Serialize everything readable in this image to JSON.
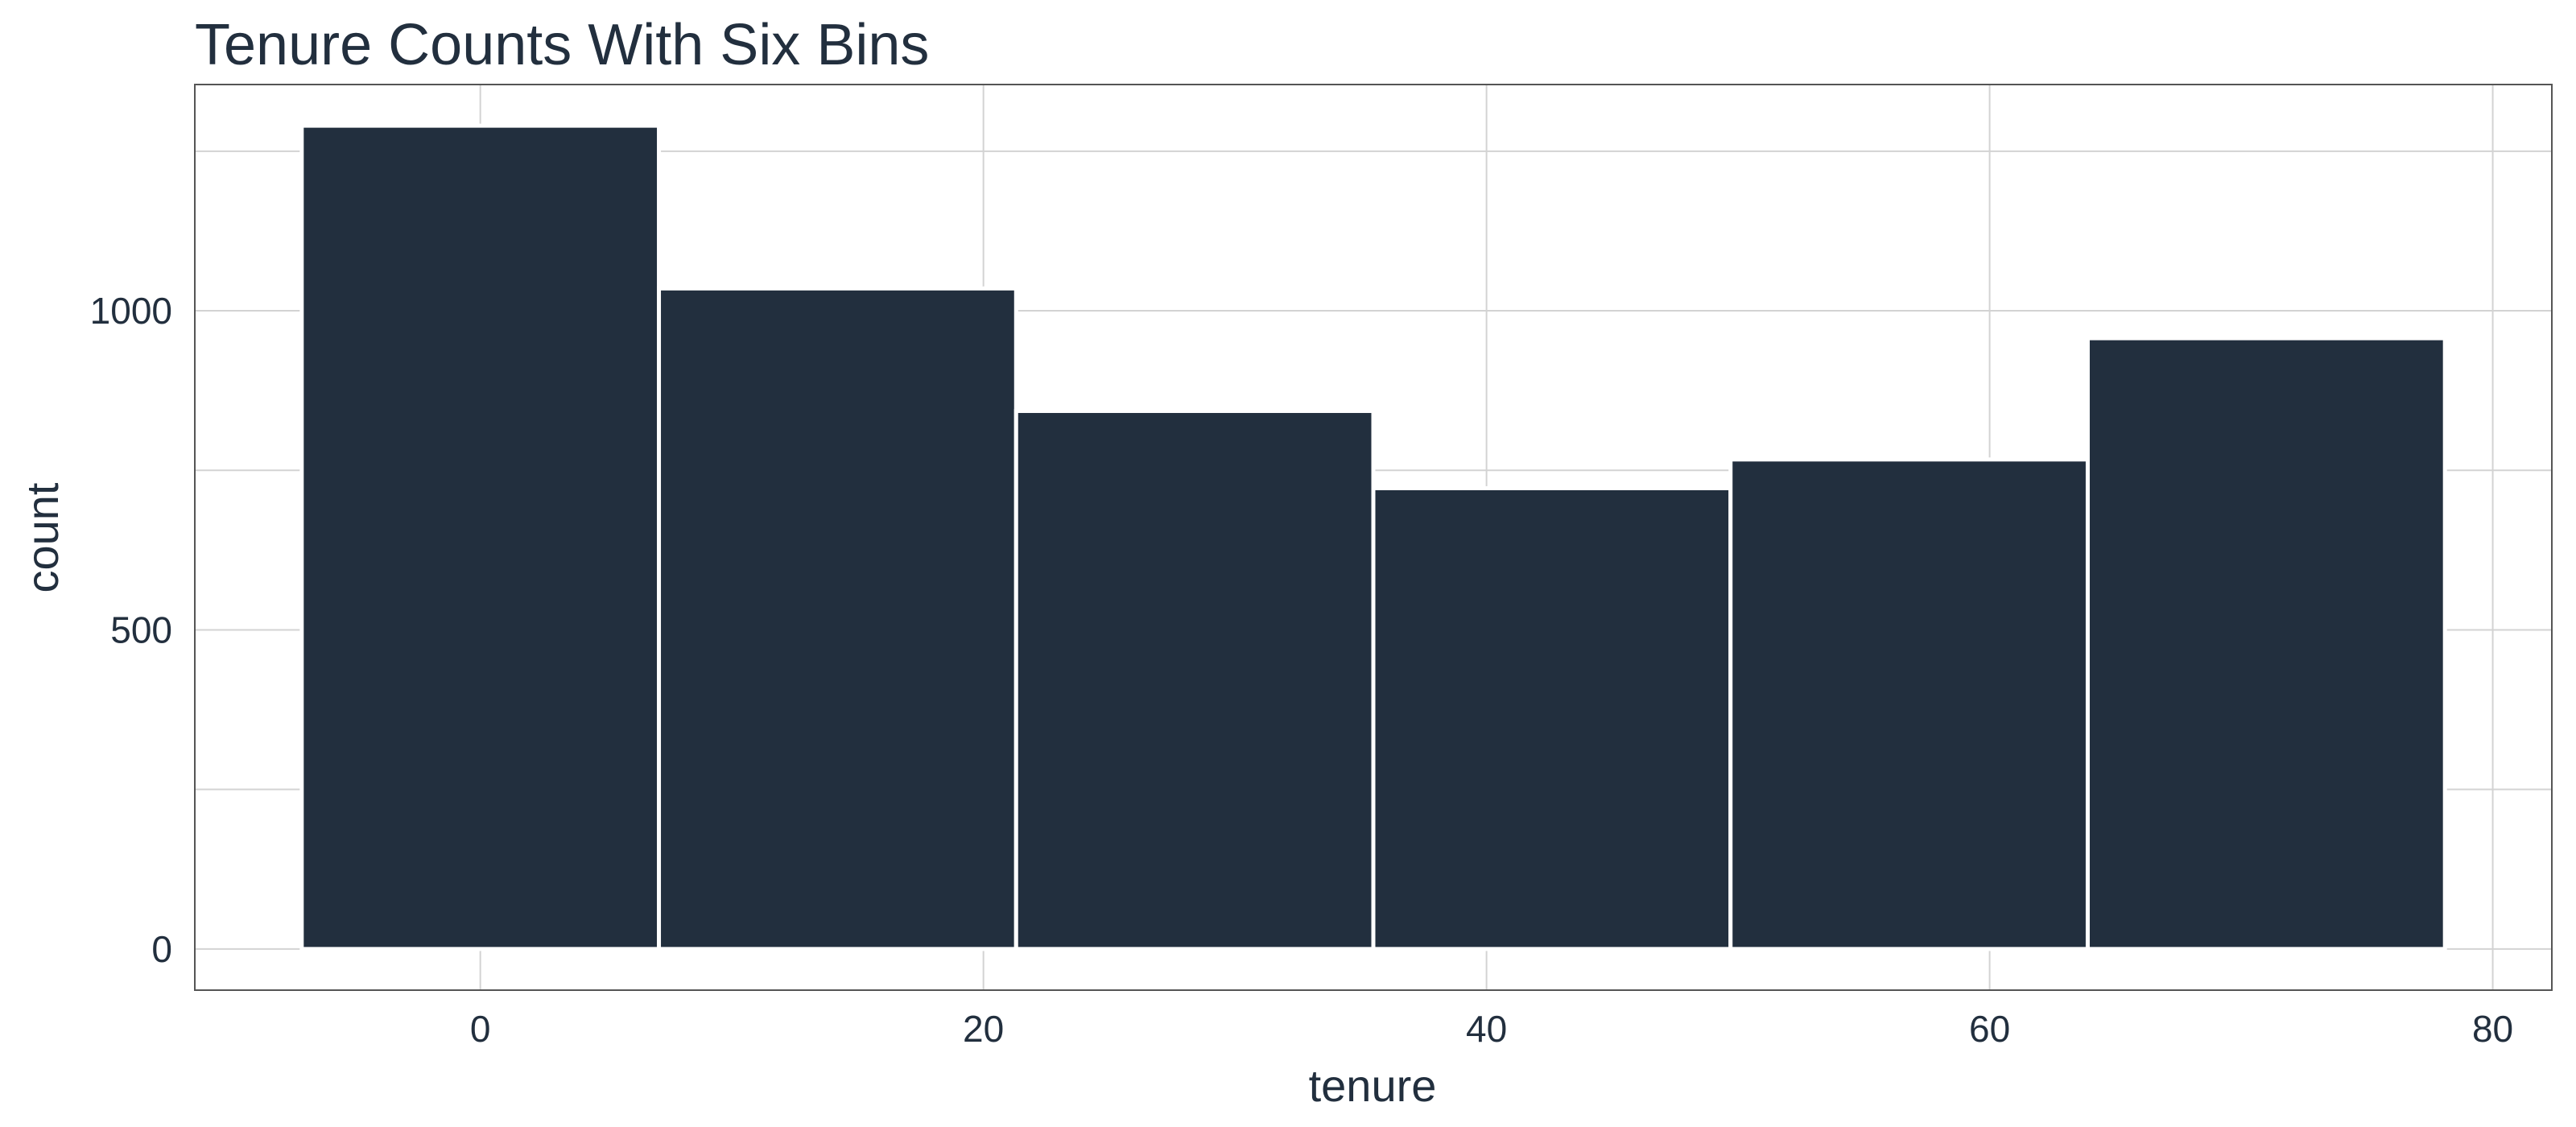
{
  "chart_data": {
    "type": "bar",
    "subtype": "histogram",
    "title": "Tenure Counts With Six Bins",
    "xlabel": "tenure",
    "ylabel": "count",
    "bins": [
      {
        "x0": -7.1,
        "x1": 7.1,
        "count": 1290
      },
      {
        "x0": 7.1,
        "x1": 21.3,
        "count": 1035
      },
      {
        "x0": 21.3,
        "x1": 35.5,
        "count": 843
      },
      {
        "x0": 35.5,
        "x1": 49.7,
        "count": 722
      },
      {
        "x0": 49.7,
        "x1": 63.9,
        "count": 767
      },
      {
        "x0": 63.9,
        "x1": 78.1,
        "count": 957
      }
    ],
    "xlim": [
      -11.35,
      82.35
    ],
    "ylim": [
      -64.5,
      1354.5
    ],
    "x_ticks": [
      0,
      20,
      40,
      60,
      80
    ],
    "x_tick_labels": [
      "0",
      "20",
      "40",
      "60",
      "80"
    ],
    "y_ticks": [
      0,
      500,
      1000
    ],
    "y_tick_labels": [
      "0",
      "500",
      "1000"
    ],
    "grid": true,
    "legend": "none",
    "colors": {
      "bar_fill": "#222f3e",
      "bar_outline": "#ffffff",
      "grid": "#d3d3d3",
      "panel_border": "#555555",
      "text": "#222f3e"
    }
  }
}
